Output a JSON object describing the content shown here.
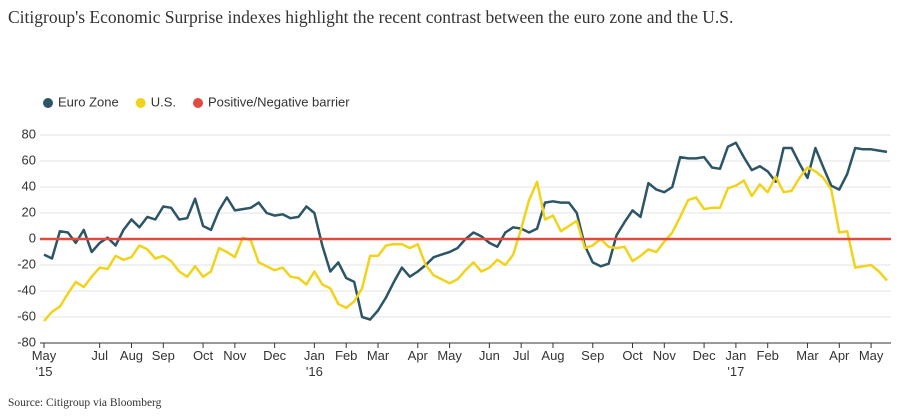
{
  "chart_data": {
    "type": "line",
    "title": "Citigroup's Economic Surprise indexes highlight the recent contrast between the euro zone and the U.S.",
    "source": "Source: Citigroup via Bloomberg",
    "categories": [
      "May '15",
      null,
      null,
      null,
      null,
      null,
      null,
      "Jul",
      null,
      null,
      null,
      "Aug",
      null,
      null,
      null,
      "Sep",
      null,
      null,
      null,
      null,
      "Oct",
      null,
      null,
      null,
      "Nov",
      null,
      null,
      null,
      null,
      "Dec",
      null,
      null,
      null,
      null,
      "Jan '16",
      null,
      null,
      null,
      "Feb",
      null,
      null,
      null,
      "Mar",
      null,
      null,
      null,
      null,
      "Apr",
      null,
      null,
      null,
      "May",
      null,
      null,
      null,
      null,
      "Jun",
      null,
      null,
      null,
      "Jul",
      null,
      null,
      null,
      "Aug",
      null,
      null,
      null,
      null,
      "Sep",
      null,
      null,
      null,
      null,
      "Oct",
      null,
      null,
      null,
      "Nov",
      null,
      null,
      null,
      null,
      "Dec",
      null,
      null,
      null,
      "Jan '17",
      null,
      null,
      null,
      "Feb",
      null,
      null,
      null,
      null,
      "Mar",
      null,
      null,
      null,
      "Apr",
      null,
      null,
      null,
      "May",
      null,
      null
    ],
    "series": [
      {
        "name": "Euro Zone",
        "color": "#2c5566",
        "values": [
          -12,
          -15,
          6,
          5,
          -3,
          7,
          -10,
          -3,
          1,
          -5,
          7,
          15,
          9,
          17,
          15,
          25,
          24,
          15,
          16,
          31,
          10,
          7,
          22,
          32,
          22,
          23,
          24,
          28,
          20,
          18,
          19,
          16,
          17,
          25,
          20,
          -5,
          -25,
          -18,
          -30,
          -33,
          -60,
          -62,
          -55,
          -45,
          -33,
          -22,
          -29,
          -25,
          -20,
          -14,
          -12,
          -10,
          -7,
          0,
          5,
          2,
          -3,
          -6,
          5,
          9,
          8,
          5,
          8,
          28,
          29,
          28,
          28,
          20,
          -5,
          -18,
          -21,
          -19,
          3,
          13,
          22,
          17,
          43,
          38,
          36,
          40,
          63,
          62,
          62,
          63,
          55,
          54,
          71,
          74,
          63,
          53,
          56,
          52,
          44,
          70,
          70,
          58,
          47,
          70,
          55,
          41,
          38,
          50,
          70,
          69,
          69,
          68,
          67
        ]
      },
      {
        "name": "U.S.",
        "color": "#f2d31b",
        "values": [
          -63,
          -56,
          -52,
          -42,
          -33,
          -37,
          -29,
          -22,
          -23,
          -13,
          -16,
          -14,
          -5,
          -8,
          -15,
          -13,
          -17,
          -25,
          -29,
          -21,
          -29,
          -25,
          -7,
          -10,
          -14,
          1,
          -1,
          -18,
          -21,
          -24,
          -22,
          -29,
          -30,
          -35,
          -25,
          -35,
          -38,
          -50,
          -53,
          -48,
          -38,
          -13,
          -13,
          -5,
          -4,
          -4,
          -7,
          -4,
          -20,
          -28,
          -31,
          -34,
          -31,
          -24,
          -18,
          -25,
          -22,
          -16,
          -20,
          -12,
          8,
          30,
          44,
          15,
          18,
          6,
          10,
          14,
          -7,
          -5,
          0,
          -6,
          -7,
          -6,
          -17,
          -13,
          -8,
          -10,
          -2,
          5,
          17,
          30,
          32,
          23,
          24,
          24,
          39,
          41,
          45,
          33,
          42,
          36,
          48,
          36,
          37,
          47,
          55,
          52,
          47,
          38,
          5,
          6,
          -22,
          -21,
          -20,
          -25,
          -32
        ]
      }
    ],
    "reference_line": {
      "name": "Positive/Negative barrier",
      "color": "#e04a3f",
      "value": 0
    },
    "ylim": [
      -80,
      80
    ],
    "yticks": [
      -80,
      -60,
      -40,
      -20,
      0,
      20,
      40,
      60,
      80
    ],
    "grid": true
  }
}
